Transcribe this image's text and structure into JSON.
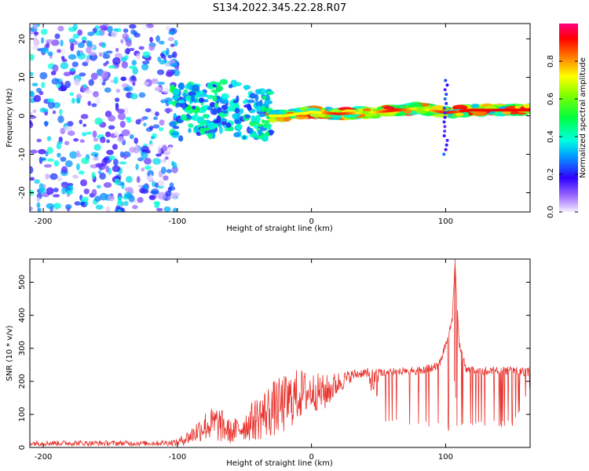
{
  "title": "S134.2022.345.22.28.R07",
  "chart_data": [
    {
      "type": "heatmap",
      "name": "spectrogram",
      "xlabel": "Height of straight line (km)",
      "ylabel": "Frequency (Hz)",
      "xlim": [
        -210,
        163
      ],
      "ylim": [
        -25,
        24
      ],
      "x_ticks": [
        -200,
        -100,
        0,
        100
      ],
      "y_ticks": [
        -20,
        -10,
        0,
        10,
        20
      ],
      "colorbar": {
        "label": "Normalized spectral amplitude",
        "range": [
          0.0,
          1.0
        ],
        "ticks": [
          0.0,
          0.2,
          0.4,
          0.6,
          0.8
        ]
      },
      "regions": [
        {
          "x": [
            -210,
            -100
          ],
          "y": [
            -25,
            24
          ],
          "amplitude_range": [
            0.0,
            0.4
          ],
          "description": "scattered noise"
        },
        {
          "x": [
            -105,
            -30
          ],
          "y": [
            -6,
            8
          ],
          "amplitude_range": [
            0.2,
            0.5
          ]
        },
        {
          "x": [
            -30,
            163
          ],
          "y": [
            0,
            3
          ],
          "amplitude_range": [
            0.3,
            0.95
          ]
        }
      ],
      "ridge_line": [
        {
          "x": -100,
          "y": 1
        },
        {
          "x": -60,
          "y": 2
        },
        {
          "x": -30,
          "y": 0
        },
        {
          "x": -20,
          "y": 0
        },
        {
          "x": 0,
          "y": 1
        },
        {
          "x": 20,
          "y": 0.5
        },
        {
          "x": 50,
          "y": 1
        },
        {
          "x": 80,
          "y": 2
        },
        {
          "x": 100,
          "y": 0.8
        },
        {
          "x": 120,
          "y": 1.5
        },
        {
          "x": 163,
          "y": 1.5
        }
      ]
    },
    {
      "type": "line",
      "name": "snr",
      "xlabel": "Height of straight line (km)",
      "ylabel": "SNR (10 * v/v)",
      "xlim": [
        -210,
        163
      ],
      "ylim": [
        0,
        570
      ],
      "x_ticks": [
        -200,
        -100,
        0,
        100
      ],
      "y_ticks": [
        0,
        100,
        200,
        300,
        400,
        500
      ],
      "color": "#e8302a",
      "envelope": [
        {
          "x": -210,
          "lo": 5,
          "hi": 22
        },
        {
          "x": -120,
          "lo": 5,
          "hi": 20
        },
        {
          "x": -100,
          "lo": 5,
          "hi": 25
        },
        {
          "x": -90,
          "lo": 10,
          "hi": 60
        },
        {
          "x": -80,
          "lo": 20,
          "hi": 110
        },
        {
          "x": -70,
          "lo": 15,
          "hi": 130
        },
        {
          "x": -60,
          "lo": 10,
          "hi": 80
        },
        {
          "x": -50,
          "lo": 20,
          "hi": 110
        },
        {
          "x": -40,
          "lo": 20,
          "hi": 160
        },
        {
          "x": -30,
          "lo": 30,
          "hi": 200
        },
        {
          "x": -20,
          "lo": 40,
          "hi": 220
        },
        {
          "x": -10,
          "lo": 80,
          "hi": 240
        },
        {
          "x": 0,
          "lo": 110,
          "hi": 230
        },
        {
          "x": 10,
          "lo": 110,
          "hi": 220
        },
        {
          "x": 20,
          "lo": 160,
          "hi": 230
        },
        {
          "x": 30,
          "lo": 200,
          "hi": 235
        },
        {
          "x": 40,
          "lo": 215,
          "hi": 240
        },
        {
          "x": 55,
          "lo": 65,
          "hi": 240
        },
        {
          "x": 80,
          "lo": 65,
          "hi": 245
        },
        {
          "x": 95,
          "lo": 60,
          "hi": 260
        },
        {
          "x": 100,
          "lo": 60,
          "hi": 320
        },
        {
          "x": 105,
          "lo": 30,
          "hi": 400
        },
        {
          "x": 107,
          "lo": 40,
          "hi": 570
        },
        {
          "x": 110,
          "lo": 60,
          "hi": 330
        },
        {
          "x": 115,
          "lo": 60,
          "hi": 250
        },
        {
          "x": 130,
          "lo": 60,
          "hi": 245
        },
        {
          "x": 150,
          "lo": 60,
          "hi": 245
        },
        {
          "x": 163,
          "lo": 170,
          "hi": 240
        }
      ],
      "spike": {
        "x": 107,
        "y": 570
      }
    }
  ]
}
